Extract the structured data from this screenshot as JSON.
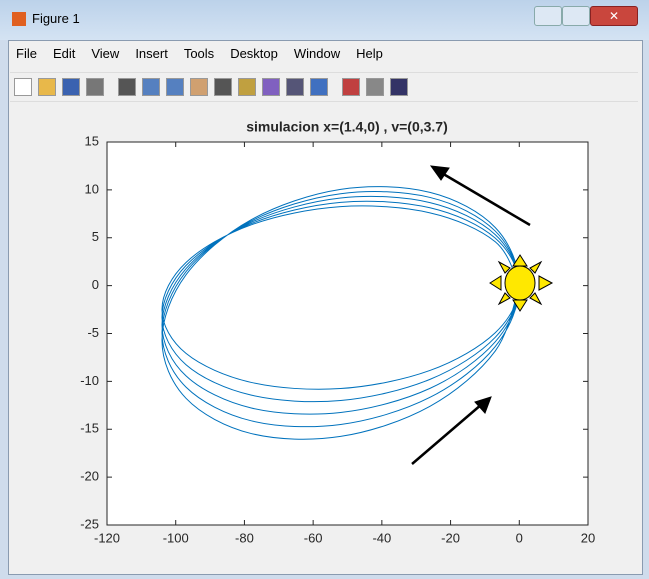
{
  "window": {
    "title": "Figure 1",
    "menu": [
      "File",
      "Edit",
      "View",
      "Insert",
      "Tools",
      "Desktop",
      "Window",
      "Help"
    ]
  },
  "chart_data": {
    "type": "line",
    "title": "simulacion x=(1.4,0) , v=(0,3.7)",
    "xlim": [
      -120,
      20
    ],
    "xticks": [
      -120,
      -100,
      -80,
      -60,
      -40,
      -20,
      0,
      20
    ],
    "ylim": [
      -25,
      15
    ],
    "yticks": [
      -25,
      -20,
      -15,
      -10,
      -5,
      0,
      5,
      10,
      15
    ],
    "series": [
      {
        "color": "#0072bd",
        "x": [
          0,
          -7,
          -26,
          -52,
          -78,
          -97,
          -104,
          -97,
          -78,
          -52,
          -26,
          -7,
          0,
          -7,
          -26,
          -52,
          -78,
          -97,
          -104,
          -97,
          -78,
          -52,
          -26,
          -7,
          0,
          -7,
          -26,
          -52,
          -78,
          -97,
          -104,
          -97,
          -78,
          -52,
          -26,
          -7,
          0,
          -7,
          -26,
          -52,
          -78,
          -97,
          -104,
          -97,
          -78,
          -52,
          -26,
          -7,
          0,
          -7,
          -26,
          -52,
          -78,
          -97,
          -104,
          -97,
          -78,
          -52,
          -26,
          -7,
          0
        ],
        "values": [
          0,
          4.58,
          7.6,
          8.25,
          6.35,
          2.42,
          -2.5,
          -7.08,
          -10.11,
          -10.75,
          -8.86,
          -4.92,
          0,
          4.96,
          8.13,
          8.7,
          6.48,
          2.1,
          -3.3,
          -8.26,
          -11.44,
          -12.0,
          -9.79,
          -5.4,
          0,
          5.33,
          8.67,
          9.15,
          6.62,
          1.77,
          -4.1,
          -9.43,
          -12.78,
          -13.25,
          -10.73,
          -5.87,
          0,
          5.7,
          9.21,
          9.6,
          6.76,
          1.46,
          -4.9,
          -10.6,
          -14.12,
          -14.5,
          -11.67,
          -6.36,
          0,
          6.07,
          9.74,
          10.05,
          6.89,
          1.13,
          -5.7,
          -11.77,
          -15.45,
          -15.75,
          -12.6,
          -6.83,
          0
        ]
      }
    ]
  }
}
